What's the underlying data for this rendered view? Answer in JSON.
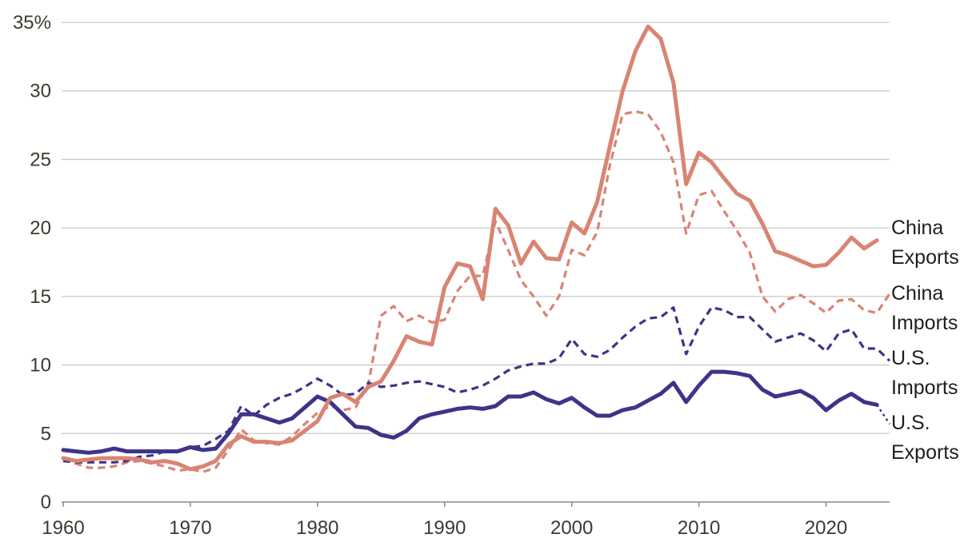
{
  "chart_data": {
    "type": "line",
    "title": "",
    "xlabel": "",
    "ylabel": "",
    "xlim": [
      1960,
      2025
    ],
    "ylim": [
      0,
      35
    ],
    "grid": true,
    "legend": "direct labels at right end of lines",
    "colors": {
      "china": "#d98473",
      "us": "#3d3489",
      "grid": "#c9c9c9",
      "text": "#3b3a2f"
    },
    "y_ticks": [
      {
        "value": 0,
        "label": "0"
      },
      {
        "value": 5,
        "label": "5"
      },
      {
        "value": 10,
        "label": "10"
      },
      {
        "value": 15,
        "label": "15"
      },
      {
        "value": 20,
        "label": "20"
      },
      {
        "value": 25,
        "label": "25"
      },
      {
        "value": 30,
        "label": "30"
      },
      {
        "value": 35,
        "label": "35%"
      }
    ],
    "x_ticks": [
      {
        "value": 1960,
        "label": "1960"
      },
      {
        "value": 1970,
        "label": "1970"
      },
      {
        "value": 1980,
        "label": "1980"
      },
      {
        "value": 1990,
        "label": "1990"
      },
      {
        "value": 2000,
        "label": "2000"
      },
      {
        "value": 2010,
        "label": "2010"
      },
      {
        "value": 2020,
        "label": "2020"
      }
    ],
    "series": [
      {
        "name": "China Exports",
        "label_lines": [
          "China",
          "Exports"
        ],
        "style": "solid",
        "color": "#d98473",
        "x": [
          1960,
          1961,
          1962,
          1963,
          1964,
          1965,
          1966,
          1967,
          1968,
          1969,
          1970,
          1971,
          1972,
          1973,
          1974,
          1975,
          1976,
          1977,
          1978,
          1979,
          1980,
          1981,
          1982,
          1983,
          1984,
          1985,
          1986,
          1987,
          1988,
          1989,
          1990,
          1991,
          1992,
          1993,
          1994,
          1995,
          1996,
          1997,
          1998,
          1999,
          2000,
          2001,
          2002,
          2003,
          2004,
          2005,
          2006,
          2007,
          2008,
          2009,
          2010,
          2011,
          2012,
          2013,
          2014,
          2015,
          2016,
          2017,
          2018,
          2019,
          2020,
          2021,
          2022,
          2023,
          2024
        ],
        "values": [
          3.2,
          3.0,
          3.1,
          3.2,
          3.2,
          3.2,
          3.1,
          2.9,
          3.0,
          2.8,
          2.4,
          2.6,
          3.0,
          4.2,
          4.8,
          4.4,
          4.4,
          4.3,
          4.5,
          5.2,
          5.9,
          7.6,
          7.9,
          7.3,
          8.4,
          8.8,
          10.3,
          12.1,
          11.7,
          11.5,
          15.7,
          17.4,
          17.2,
          14.8,
          21.4,
          20.2,
          17.4,
          19.0,
          17.8,
          17.7,
          20.4,
          19.6,
          21.9,
          26.0,
          30.0,
          32.9,
          34.7,
          33.8,
          30.6,
          23.2,
          25.5,
          24.8,
          23.6,
          22.5,
          22.0,
          20.3,
          18.3,
          18.0,
          17.6,
          17.2,
          17.3,
          18.2,
          19.3,
          18.5,
          19.1
        ]
      },
      {
        "name": "China Imports",
        "label_lines": [
          "China",
          "Imports"
        ],
        "style": "dashed",
        "color": "#d98473",
        "x": [
          1960,
          1961,
          1962,
          1963,
          1964,
          1965,
          1966,
          1967,
          1968,
          1969,
          1970,
          1971,
          1972,
          1973,
          1974,
          1975,
          1976,
          1977,
          1978,
          1979,
          1980,
          1981,
          1982,
          1983,
          1984,
          1985,
          1986,
          1987,
          1988,
          1989,
          1990,
          1991,
          1992,
          1993,
          1994,
          1995,
          1996,
          1997,
          1998,
          1999,
          2000,
          2001,
          2002,
          2003,
          2004,
          2005,
          2006,
          2007,
          2008,
          2009,
          2010,
          2011,
          2012,
          2013,
          2014,
          2015,
          2016,
          2017,
          2018,
          2019,
          2020,
          2021,
          2022,
          2023,
          2024,
          2025
        ],
        "values": [
          3.1,
          2.8,
          2.5,
          2.5,
          2.6,
          2.9,
          3.0,
          2.8,
          2.6,
          2.3,
          2.4,
          2.2,
          2.5,
          3.8,
          5.3,
          4.5,
          4.3,
          4.2,
          4.8,
          5.7,
          6.5,
          7.0,
          6.7,
          6.9,
          8.6,
          13.6,
          14.3,
          13.2,
          13.6,
          13.1,
          13.3,
          15.4,
          16.5,
          16.5,
          20.5,
          18.4,
          16.2,
          15.0,
          13.6,
          15.0,
          18.4,
          18.0,
          19.7,
          24.6,
          28.3,
          28.5,
          28.3,
          27.0,
          24.8,
          19.6,
          22.4,
          22.7,
          21.2,
          19.8,
          18.2,
          15.0,
          13.9,
          14.8,
          15.1,
          14.5,
          13.8,
          14.7,
          14.8,
          14.0,
          13.8,
          15.2
        ]
      },
      {
        "name": "U.S. Imports",
        "label_lines": [
          "U.S.",
          "Imports"
        ],
        "style": "dashed",
        "color": "#3d3489",
        "x": [
          1960,
          1961,
          1962,
          1963,
          1964,
          1965,
          1966,
          1967,
          1968,
          1969,
          1970,
          1971,
          1972,
          1973,
          1974,
          1975,
          1976,
          1977,
          1978,
          1979,
          1980,
          1981,
          1982,
          1983,
          1984,
          1985,
          1986,
          1987,
          1988,
          1989,
          1990,
          1991,
          1992,
          1993,
          1994,
          1995,
          1996,
          1997,
          1998,
          1999,
          2000,
          2001,
          2002,
          2003,
          2004,
          2005,
          2006,
          2007,
          2008,
          2009,
          2010,
          2011,
          2012,
          2013,
          2014,
          2015,
          2016,
          2017,
          2018,
          2019,
          2020,
          2021,
          2022,
          2023,
          2024,
          2025
        ],
        "values": [
          3.0,
          2.9,
          2.9,
          2.9,
          2.9,
          3.0,
          3.3,
          3.4,
          3.7,
          3.7,
          4.0,
          4.1,
          4.6,
          5.2,
          7.0,
          6.3,
          7.1,
          7.6,
          7.9,
          8.4,
          9.0,
          8.5,
          7.8,
          7.9,
          8.7,
          8.4,
          8.5,
          8.7,
          8.8,
          8.6,
          8.4,
          8.0,
          8.2,
          8.5,
          9.0,
          9.6,
          9.9,
          10.1,
          10.1,
          10.5,
          11.9,
          10.8,
          10.6,
          11.1,
          12.0,
          12.8,
          13.4,
          13.5,
          14.2,
          10.8,
          12.8,
          14.2,
          14.0,
          13.5,
          13.5,
          12.6,
          11.7,
          12.0,
          12.3,
          11.8,
          11.0,
          12.3,
          12.6,
          11.2,
          11.2,
          10.3
        ]
      },
      {
        "name": "U.S. Exports",
        "label_lines": [
          "U.S.",
          "Exports"
        ],
        "style": "solid",
        "color": "#3d3489",
        "x": [
          1960,
          1961,
          1962,
          1963,
          1964,
          1965,
          1966,
          1967,
          1968,
          1969,
          1970,
          1971,
          1972,
          1973,
          1974,
          1975,
          1976,
          1977,
          1978,
          1979,
          1980,
          1981,
          1982,
          1983,
          1984,
          1985,
          1986,
          1987,
          1988,
          1989,
          1990,
          1991,
          1992,
          1993,
          1994,
          1995,
          1996,
          1997,
          1998,
          1999,
          2000,
          2001,
          2002,
          2003,
          2004,
          2005,
          2006,
          2007,
          2008,
          2009,
          2010,
          2011,
          2012,
          2013,
          2014,
          2015,
          2016,
          2017,
          2018,
          2019,
          2020,
          2021,
          2022,
          2023,
          2024
        ],
        "values": [
          3.8,
          3.7,
          3.6,
          3.7,
          3.9,
          3.7,
          3.7,
          3.7,
          3.7,
          3.7,
          4.0,
          3.8,
          3.9,
          5.0,
          6.4,
          6.4,
          6.1,
          5.8,
          6.1,
          6.9,
          7.7,
          7.3,
          6.4,
          5.5,
          5.4,
          4.9,
          4.7,
          5.2,
          6.1,
          6.4,
          6.6,
          6.8,
          6.9,
          6.8,
          7.0,
          7.7,
          7.7,
          8.0,
          7.5,
          7.2,
          7.6,
          6.9,
          6.3,
          6.3,
          6.7,
          6.9,
          7.4,
          7.9,
          8.7,
          7.3,
          8.5,
          9.5,
          9.5,
          9.4,
          9.2,
          8.2,
          7.7,
          7.9,
          8.1,
          7.6,
          6.7,
          7.4,
          7.9,
          7.3,
          7.1
        ],
        "tail_x": [
          2024,
          2025
        ],
        "tail_values": [
          7.1,
          5.7
        ]
      }
    ]
  }
}
